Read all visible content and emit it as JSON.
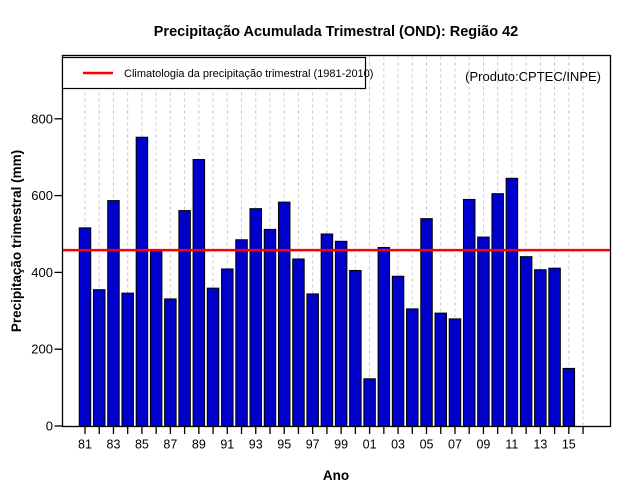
{
  "title": "Precipitação Acumulada Trimestral (OND): Região 42",
  "produto_label": "(Produto:CPTEC/INPE)",
  "legend": {
    "label": "Climatologia da precipitação trimestral (1981-2010)"
  },
  "axes": {
    "xlabel": "Ano",
    "ylabel": "Precipitação trimestral (mm)"
  },
  "chart_data": {
    "type": "bar",
    "title": "Precipitação Acumulada Trimestral (OND): Região 42",
    "xlabel": "Ano",
    "ylabel": "Precipitação trimestral (mm)",
    "categories": [
      1981,
      1982,
      1983,
      1984,
      1985,
      1986,
      1987,
      1988,
      1989,
      1990,
      1991,
      1992,
      1993,
      1994,
      1995,
      1996,
      1997,
      1998,
      1999,
      2000,
      2001,
      2002,
      2003,
      2004,
      2005,
      2006,
      2007,
      2008,
      2009,
      2010,
      2011,
      2012,
      2013,
      2014,
      2015
    ],
    "values": [
      516,
      355,
      587,
      346,
      752,
      457,
      331,
      561,
      694,
      359,
      409,
      485,
      566,
      512,
      583,
      435,
      344,
      500,
      481,
      405,
      123,
      465,
      390,
      305,
      540,
      294,
      279,
      590,
      492,
      605,
      645,
      441,
      407,
      411,
      150
    ],
    "climatology_line": 458,
    "climatology_label": "Climatologia da precipitação trimestral (1981-2010)",
    "ylim": [
      0,
      965
    ],
    "yticks": [
      0,
      200,
      400,
      600,
      800
    ],
    "xtick_labels": [
      "81",
      "83",
      "85",
      "87",
      "89",
      "91",
      "93",
      "95",
      "97",
      "99",
      "01",
      "03",
      "05",
      "07",
      "09",
      "11",
      "13",
      "15"
    ],
    "xticks_every_year_through": 2016,
    "grid": "vertical-dashed",
    "legend_position": "top-left",
    "colors": {
      "bar": "#0000CD",
      "bar_border": "#000000",
      "climatology": "#FF0000",
      "grid": "#C8C8C8",
      "produto_text": "#999999",
      "axis": "#000000"
    }
  }
}
